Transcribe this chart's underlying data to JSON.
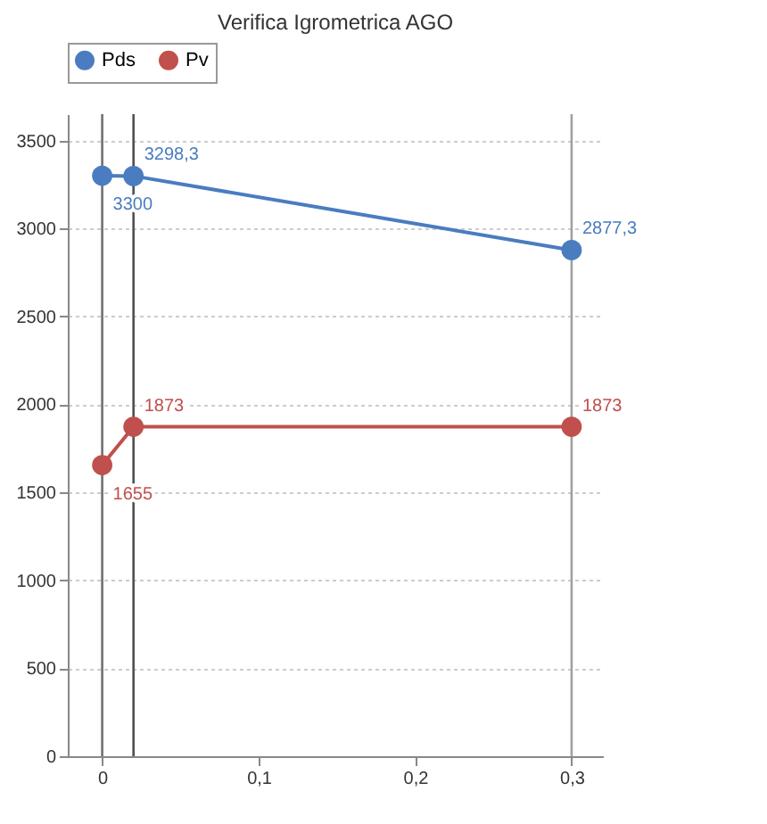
{
  "chart_data": {
    "type": "line",
    "title": "Verifica Igrometrica AGO",
    "x": [
      0,
      0.02,
      0.3
    ],
    "series": [
      {
        "name": "Pds",
        "color": "#4a7cc0",
        "values": [
          3300,
          3298.3,
          2877.3
        ],
        "value_labels": [
          "3300",
          "3298,3",
          "2877,3"
        ]
      },
      {
        "name": "Pv",
        "color": "#c0504d",
        "values": [
          1655,
          1873,
          1873
        ],
        "value_labels": [
          "1655",
          "1873",
          "1873"
        ]
      }
    ],
    "xlim": [
      -0.022,
      0.32
    ],
    "ylim": [
      0,
      3650
    ],
    "xticks": [
      {
        "value": 0,
        "label": "0"
      },
      {
        "value": 0.1,
        "label": "0,1"
      },
      {
        "value": 0.2,
        "label": "0,2"
      },
      {
        "value": 0.3,
        "label": "0,3"
      }
    ],
    "yticks": [
      0,
      500,
      1000,
      1500,
      2000,
      2500,
      3000,
      3500
    ],
    "ref_lines": [
      {
        "axis": "x",
        "value": 0,
        "color": "#707070"
      },
      {
        "axis": "x",
        "value": 0.02,
        "color": "#505050"
      },
      {
        "axis": "x",
        "value": 0.3,
        "color": "#a0a0a0"
      }
    ],
    "grid": "y",
    "legend": "top",
    "marker": "circle",
    "line_style": "solid"
  }
}
